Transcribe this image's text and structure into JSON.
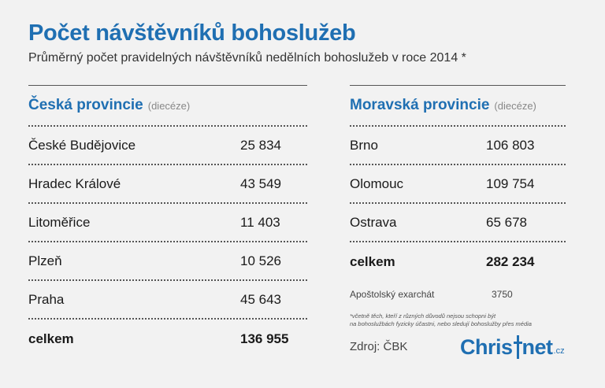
{
  "header": {
    "title": "Počet návštěvníků bohoslužeb",
    "subtitle": "Průměrný počet pravidelných návštěvníků nedělních bohoslužeb v roce 2014 *"
  },
  "ceska": {
    "title": "Česká provincie",
    "note": "(diecéze)",
    "rows": [
      {
        "name": "České Budějovice",
        "value": "25 834"
      },
      {
        "name": "Hradec Králové",
        "value": "43 549"
      },
      {
        "name": "Litoměřice",
        "value": "11 403"
      },
      {
        "name": "Plzeň",
        "value": "10 526"
      },
      {
        "name": "Praha",
        "value": "45 643"
      }
    ],
    "total_label": "celkem",
    "total_value": "136 955"
  },
  "moravska": {
    "title": "Moravská provincie",
    "note": "(diecéze)",
    "rows": [
      {
        "name": "Brno",
        "value": "106 803"
      },
      {
        "name": "Olomouc",
        "value": "109 754"
      },
      {
        "name": "Ostrava",
        "value": "65 678"
      }
    ],
    "total_label": "celkem",
    "total_value": "282 234"
  },
  "exarchat": {
    "label": "Apoštolský exarchát",
    "value": "3750"
  },
  "footnote": {
    "line1": "*včetně těch, kteří z různých důvodů nejsou schopni být",
    "line2": "na bohoslužbách fyzicky účastni, nebo sledují bohoslužby přes média"
  },
  "source": "Zdroj: ČBK",
  "logo": {
    "part1": "Chris",
    "part2": "net",
    "suffix": ".cz"
  },
  "colors": {
    "accent": "#1f6fb2",
    "background": "#f2f2f2"
  }
}
